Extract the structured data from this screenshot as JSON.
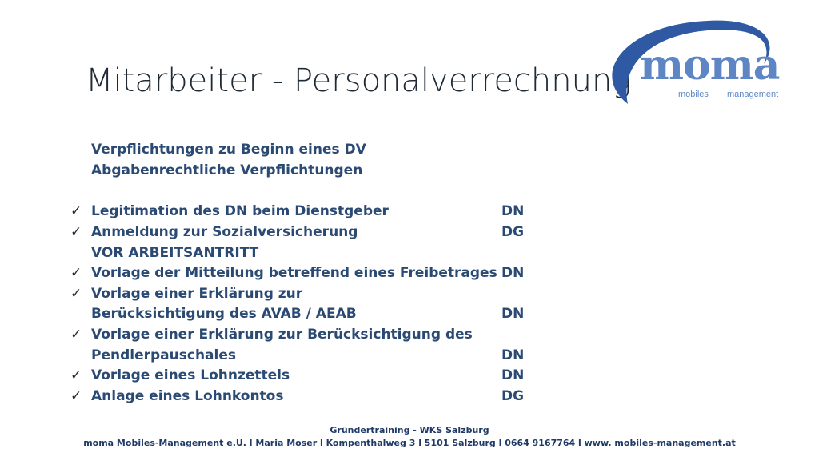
{
  "slide": {
    "title": "Mitarbeiter - Personalverrechnung"
  },
  "logo": {
    "word": "moma",
    "sub_left": "mobiles",
    "sub_right": "management",
    "color_primary": "#2f5aa3",
    "color_text": "#5e86c4"
  },
  "intro": [
    "Verpflichtungen zu Beginn eines DV",
    "Abgabenrechtliche Verpflichtungen"
  ],
  "items": [
    {
      "lines": [
        "Legitimation des DN beim Dienstgeber"
      ],
      "role": "DN"
    },
    {
      "lines": [
        "Anmeldung zur Sozialversicherung",
        "VOR ARBEITSANTRITT"
      ],
      "role": "DG"
    },
    {
      "lines": [
        "Vorlage der Mitteilung betreffend eines Freibetrages"
      ],
      "role": "DN"
    },
    {
      "lines": [
        "Vorlage einer Erklärung zur",
        "Berücksichtigung des AVAB / AEAB"
      ],
      "role": "DN"
    },
    {
      "lines": [
        "Vorlage einer Erklärung zur Berücksichtigung des",
        "Pendlerpauschales"
      ],
      "role": "DN"
    },
    {
      "lines": [
        "Vorlage eines Lohnzettels"
      ],
      "role": "DN"
    },
    {
      "lines": [
        "Anlage eines Lohnkontos"
      ],
      "role": "DG"
    }
  ],
  "footer": {
    "line1": "Gründertraining - WKS Salzburg",
    "line2": "moma Mobiles-Management e.U. l Maria Moser l Kompenthalweg 3 l 5101 Salzburg l 0664 9167764 l www. mobiles-management.at"
  }
}
